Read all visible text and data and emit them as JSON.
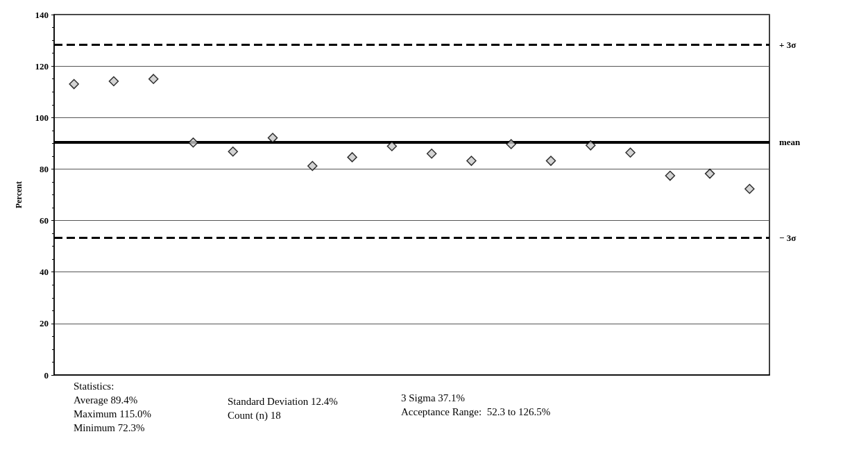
{
  "chart_data": {
    "type": "scatter",
    "ylabel": "Percent",
    "categories": [
      null,
      null,
      null,
      null,
      null,
      null,
      null,
      null,
      null,
      null,
      null,
      null,
      null,
      null,
      null,
      null,
      null,
      null
    ],
    "values": [
      113.0,
      114.1,
      115.0,
      90.3,
      86.8,
      92.1,
      81.2,
      84.6,
      88.9,
      86.0,
      83.2,
      89.7,
      83.2,
      89.2,
      86.4,
      77.4,
      78.2,
      72.3
    ],
    "color": "#c8c8c8",
    "marker": "diamond",
    "ylim": [
      0,
      140
    ],
    "yticks": [
      0,
      20,
      40,
      60,
      80,
      100,
      120,
      140
    ],
    "grid": "y",
    "ref_lines": [
      {
        "axis": "y",
        "value": 128.2,
        "label": "+ 3σ",
        "line_style": "dashed",
        "color": "#000000"
      },
      {
        "axis": "y",
        "value": 90.4,
        "label": "mean",
        "line_style": "solid",
        "color": "#000000"
      },
      {
        "axis": "y",
        "value": 53.4,
        "label": "− 3σ",
        "line_style": "dashed",
        "color": "#000000"
      }
    ],
    "annotations": [
      "Statistics:",
      "Average 89.4%",
      "Maximum 115.0%",
      "Minimum 72.3%",
      "Standard Deviation 12.4%",
      "Count (n) 18",
      "3 Sigma 37.1%",
      "Acceptance Range:  52.3 to 126.5%"
    ]
  }
}
